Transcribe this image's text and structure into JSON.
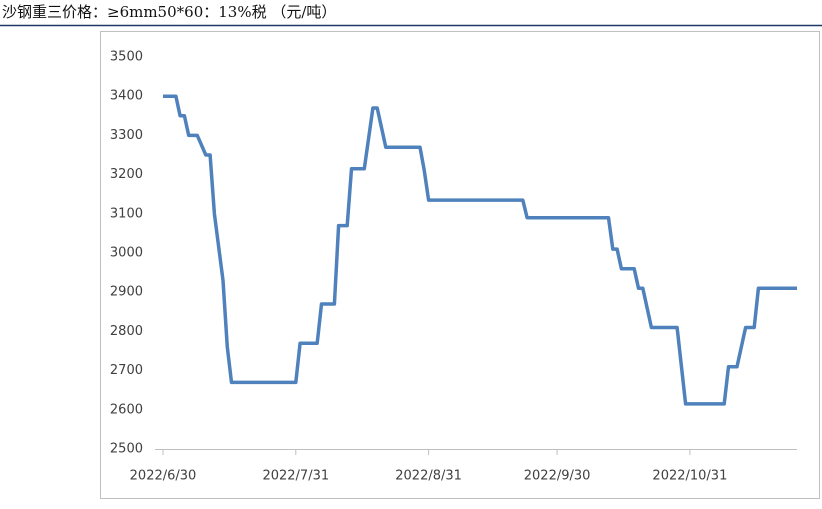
{
  "chart_data": {
    "type": "line",
    "title": "沙钢重三价格：≥6mm50*60：13%税 （元/吨）",
    "x": [
      "2022/6/30",
      "2022/7/3",
      "2022/7/4",
      "2022/7/5",
      "2022/7/6",
      "2022/7/8",
      "2022/7/10",
      "2022/7/11",
      "2022/7/12",
      "2022/7/14",
      "2022/7/15",
      "2022/7/16",
      "2022/7/31",
      "2022/8/1",
      "2022/8/5",
      "2022/8/6",
      "2022/8/9",
      "2022/8/10",
      "2022/8/12",
      "2022/8/13",
      "2022/8/16",
      "2022/8/18",
      "2022/8/19",
      "2022/8/21",
      "2022/8/29",
      "2022/8/30",
      "2022/8/31",
      "2022/9/22",
      "2022/9/23",
      "2022/10/12",
      "2022/10/13",
      "2022/10/14",
      "2022/10/15",
      "2022/10/18",
      "2022/10/19",
      "2022/10/20",
      "2022/10/22",
      "2022/10/28",
      "2022/10/30",
      "2022/11/8",
      "2022/11/9",
      "2022/11/11",
      "2022/11/13",
      "2022/11/15",
      "2022/11/16",
      "2022/11/25"
    ],
    "series": [
      {
        "color": "#4f81bd",
        "values": [
          3400,
          3400,
          3350,
          3350,
          3300,
          3300,
          3250,
          3250,
          3100,
          2930,
          2760,
          2670,
          2670,
          2770,
          2770,
          2870,
          2870,
          3070,
          3070,
          3215,
          3215,
          3370,
          3370,
          3270,
          3270,
          3210,
          3135,
          3135,
          3090,
          3090,
          3010,
          3010,
          2960,
          2960,
          2910,
          2910,
          2810,
          2810,
          2615,
          2615,
          2710,
          2710,
          2810,
          2810,
          2910,
          2910
        ]
      }
    ],
    "xlim": [
      "2022/6/30",
      "2022/11/25"
    ],
    "xticks": [
      "2022/6/30",
      "2022/7/31",
      "2022/8/31",
      "2022/9/30",
      "2022/10/31"
    ],
    "ylim": [
      2500,
      3500
    ],
    "yticks": [
      2500,
      2600,
      2700,
      2800,
      2900,
      3000,
      3100,
      3200,
      3300,
      3400,
      3500
    ]
  }
}
